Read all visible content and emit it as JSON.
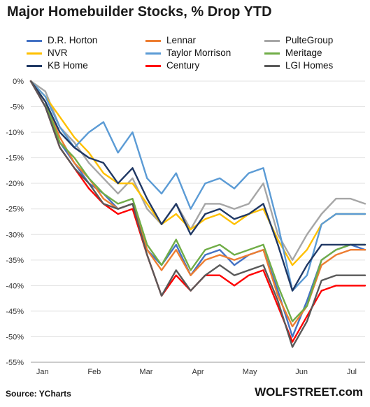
{
  "title": "Major Homebuilder Stocks, % Drop YTD",
  "source": "Source: YCharts",
  "brand": "WOLFSTREET.com",
  "chart_data": {
    "type": "line",
    "title": "Major Homebuilder Stocks, % Drop YTD",
    "xlabel": "",
    "ylabel": "",
    "x_ticks": [
      "Jan",
      "Feb",
      "Mar",
      "Apr",
      "May",
      "Jun",
      "Jul"
    ],
    "y_ticks": [
      "0%",
      "-5%",
      "-10%",
      "-15%",
      "-20%",
      "-25%",
      "-30%",
      "-35%",
      "-40%",
      "-45%",
      "-50%",
      "-55%"
    ],
    "ylim": [
      -55,
      0
    ],
    "grid": "horizontal",
    "legend_position": "top",
    "series": [
      {
        "name": "D.R. Horton",
        "color": "#4472c4",
        "values": [
          0,
          -5,
          -12,
          -16,
          -20,
          -22,
          -25,
          -24,
          -33,
          -36,
          -32,
          -38,
          -34,
          -33,
          -36,
          -34,
          -33,
          -41,
          -50,
          -43,
          -35,
          -33,
          -32,
          -33
        ]
      },
      {
        "name": "Lennar",
        "color": "#ed7d31",
        "values": [
          0,
          -4,
          -11,
          -16,
          -19,
          -23,
          -25,
          -24,
          -33,
          -37,
          -33,
          -38,
          -35,
          -34,
          -35,
          -34,
          -33,
          -42,
          -48,
          -44,
          -36,
          -34,
          -33,
          -33
        ]
      },
      {
        "name": "PulteGroup",
        "color": "#a6a6a6",
        "values": [
          0,
          -2,
          -9,
          -12,
          -16,
          -19,
          -22,
          -19,
          -25,
          -28,
          -24,
          -29,
          -24,
          -24,
          -25,
          -24,
          -20,
          -30,
          -35,
          -30,
          -26,
          -23,
          -23,
          -24
        ]
      },
      {
        "name": "NVR",
        "color": "#ffc000",
        "values": [
          0,
          -3,
          -7,
          -11,
          -14,
          -18,
          -20,
          -20,
          -24,
          -28,
          -26,
          -29,
          -27,
          -26,
          -28,
          -26,
          -25,
          -31,
          -36,
          -33,
          -28,
          -26,
          -26,
          -26
        ]
      },
      {
        "name": "Taylor Morrison",
        "color": "#5b9bd5",
        "values": [
          0,
          -3,
          -9,
          -13,
          -10,
          -8,
          -14,
          -10,
          -19,
          -22,
          -18,
          -25,
          -20,
          -19,
          -21,
          -18,
          -17,
          -28,
          -41,
          -38,
          -28,
          -26,
          -26,
          -26
        ]
      },
      {
        "name": "Meritage",
        "color": "#70ad47",
        "values": [
          0,
          -4,
          -12,
          -15,
          -19,
          -22,
          -24,
          -23,
          -32,
          -36,
          -31,
          -37,
          -33,
          -32,
          -34,
          -33,
          -32,
          -40,
          -47,
          -44,
          -35,
          -33,
          -32,
          -32
        ]
      },
      {
        "name": "KB Home",
        "color": "#203864",
        "values": [
          0,
          -4,
          -10,
          -13,
          -15,
          -16,
          -20,
          -17,
          -23,
          -28,
          -24,
          -30,
          -26,
          -25,
          -27,
          -26,
          -24,
          -32,
          -41,
          -36,
          -32,
          -32,
          -32,
          -32
        ]
      },
      {
        "name": "Century",
        "color": "#ff0000",
        "values": [
          0,
          -5,
          -13,
          -17,
          -21,
          -24,
          -26,
          -25,
          -34,
          -42,
          -38,
          -41,
          -38,
          -38,
          -40,
          -38,
          -37,
          -44,
          -51,
          -46,
          -41,
          -40,
          -40,
          -40
        ]
      },
      {
        "name": "LGI Homes",
        "color": "#595959",
        "values": [
          0,
          -5,
          -13,
          -17,
          -20,
          -24,
          -25,
          -24,
          -34,
          -42,
          -37,
          -41,
          -38,
          -36,
          -38,
          -37,
          -36,
          -43,
          -52,
          -47,
          -39,
          -38,
          -38,
          -38
        ]
      }
    ]
  }
}
